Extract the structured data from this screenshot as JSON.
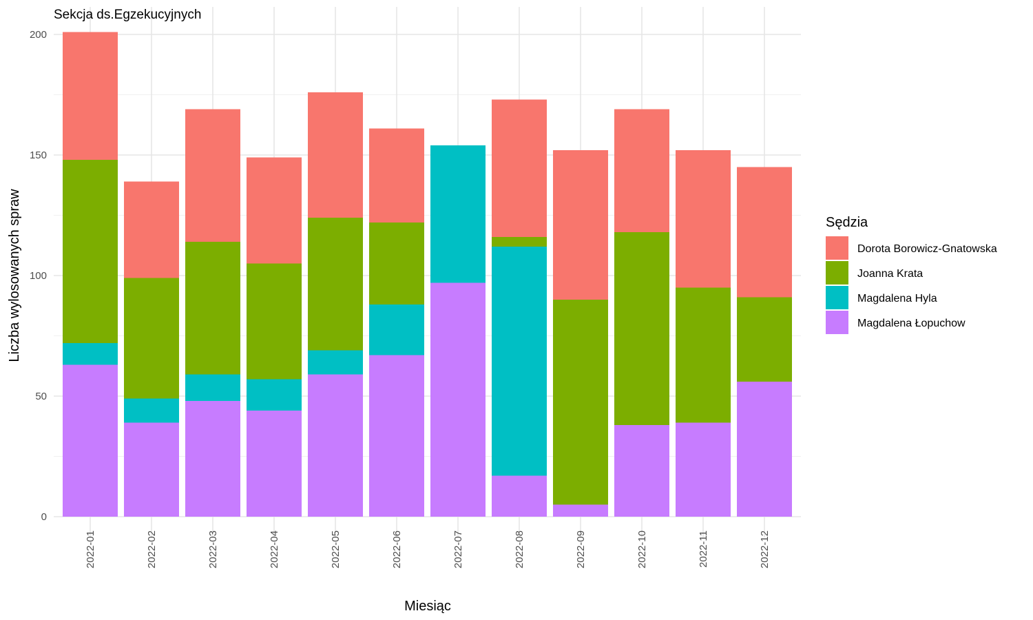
{
  "chart_data": {
    "type": "bar",
    "stacked": true,
    "title": "Sekcja ds.Egzekucyjnych",
    "xlabel": "Miesiąc",
    "ylabel": "Liczba wylosowanych spraw",
    "ylim": [
      0,
      200
    ],
    "yticks": [
      0,
      50,
      100,
      150,
      200
    ],
    "grid": true,
    "legend": {
      "title": "Sędzia",
      "position": "right"
    },
    "categories": [
      "2022-01",
      "2022-02",
      "2022-03",
      "2022-04",
      "2022-05",
      "2022-06",
      "2022-07",
      "2022-08",
      "2022-09",
      "2022-10",
      "2022-11",
      "2022-12"
    ],
    "series": [
      {
        "name": "Magdalena Łopuchow",
        "color": "#C77CFF",
        "values": [
          63,
          39,
          48,
          44,
          59,
          67,
          97,
          17,
          5,
          38,
          39,
          56
        ]
      },
      {
        "name": "Magdalena Hyla",
        "color": "#00BFC4",
        "values": [
          9,
          10,
          11,
          13,
          10,
          21,
          57,
          95,
          0,
          0,
          0,
          0
        ]
      },
      {
        "name": "Joanna Krata",
        "color": "#7CAE00",
        "values": [
          76,
          50,
          55,
          48,
          55,
          34,
          0,
          4,
          85,
          80,
          56,
          35
        ]
      },
      {
        "name": "Dorota Borowicz-Gnatowska",
        "color": "#F8766D",
        "values": [
          53,
          40,
          55,
          44,
          52,
          39,
          0,
          57,
          62,
          51,
          57,
          54
        ]
      }
    ],
    "legend_order": [
      "Dorota Borowicz-Gnatowska",
      "Joanna Krata",
      "Magdalena Hyla",
      "Magdalena Łopuchow"
    ]
  }
}
